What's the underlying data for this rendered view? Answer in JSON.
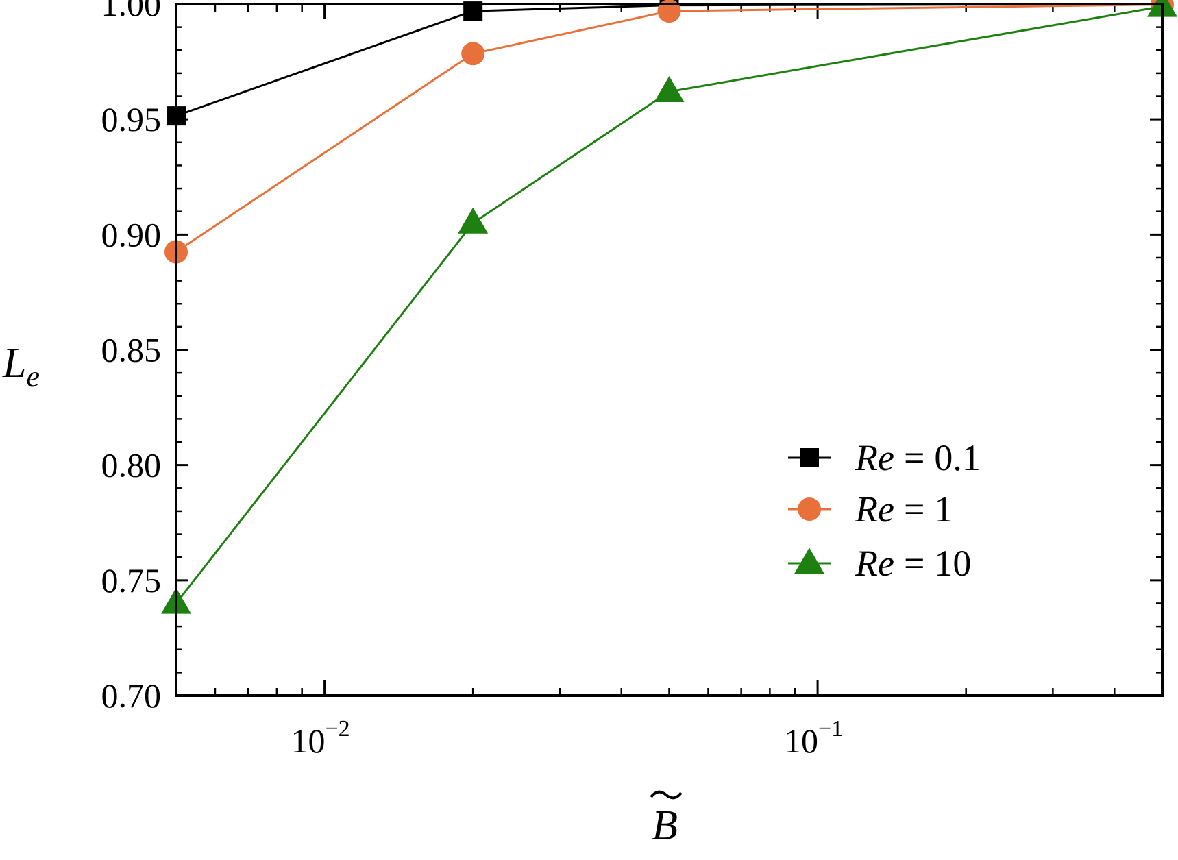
{
  "chart_data": {
    "type": "line",
    "title": "",
    "xlabel": "B",
    "ylabel": "L",
    "ylabel_sub": "e",
    "xscale": "log",
    "xlim": [
      0.005,
      0.5
    ],
    "ylim": [
      0.7,
      1.0
    ],
    "yticks": [
      {
        "value": 0.7,
        "label": "0.70"
      },
      {
        "value": 0.75,
        "label": "0.75"
      },
      {
        "value": 0.8,
        "label": "0.80"
      },
      {
        "value": 0.85,
        "label": "0.85"
      },
      {
        "value": 0.9,
        "label": "0.90"
      },
      {
        "value": 0.95,
        "label": "0.95"
      },
      {
        "value": 1.0,
        "label": "1.00"
      }
    ],
    "xticks": [
      {
        "value": 0.01,
        "base": "10",
        "exp": "−2"
      },
      {
        "value": 0.1,
        "base": "10",
        "exp": "−1"
      }
    ],
    "grid": false,
    "legend": {
      "position": "center-right",
      "prefix": "Re",
      "operator": "=",
      "entries": [
        {
          "series": 0,
          "value": "0.1"
        },
        {
          "series": 1,
          "value": "1"
        },
        {
          "series": 2,
          "value": "10"
        }
      ]
    },
    "x": [
      0.005,
      0.02,
      0.05,
      0.5
    ],
    "series": [
      {
        "name": "Re = 0.1",
        "marker": "square",
        "color": "#000000",
        "values": [
          0.9515,
          0.997,
          0.9995,
          1.0
        ]
      },
      {
        "name": "Re = 1",
        "marker": "circle",
        "color": "#e8703a",
        "values": [
          0.8925,
          0.9785,
          0.997,
          0.9998
        ]
      },
      {
        "name": "Re = 10",
        "marker": "triangle",
        "color": "#1e8010",
        "values": [
          0.74,
          0.905,
          0.962,
          0.999
        ]
      }
    ]
  }
}
